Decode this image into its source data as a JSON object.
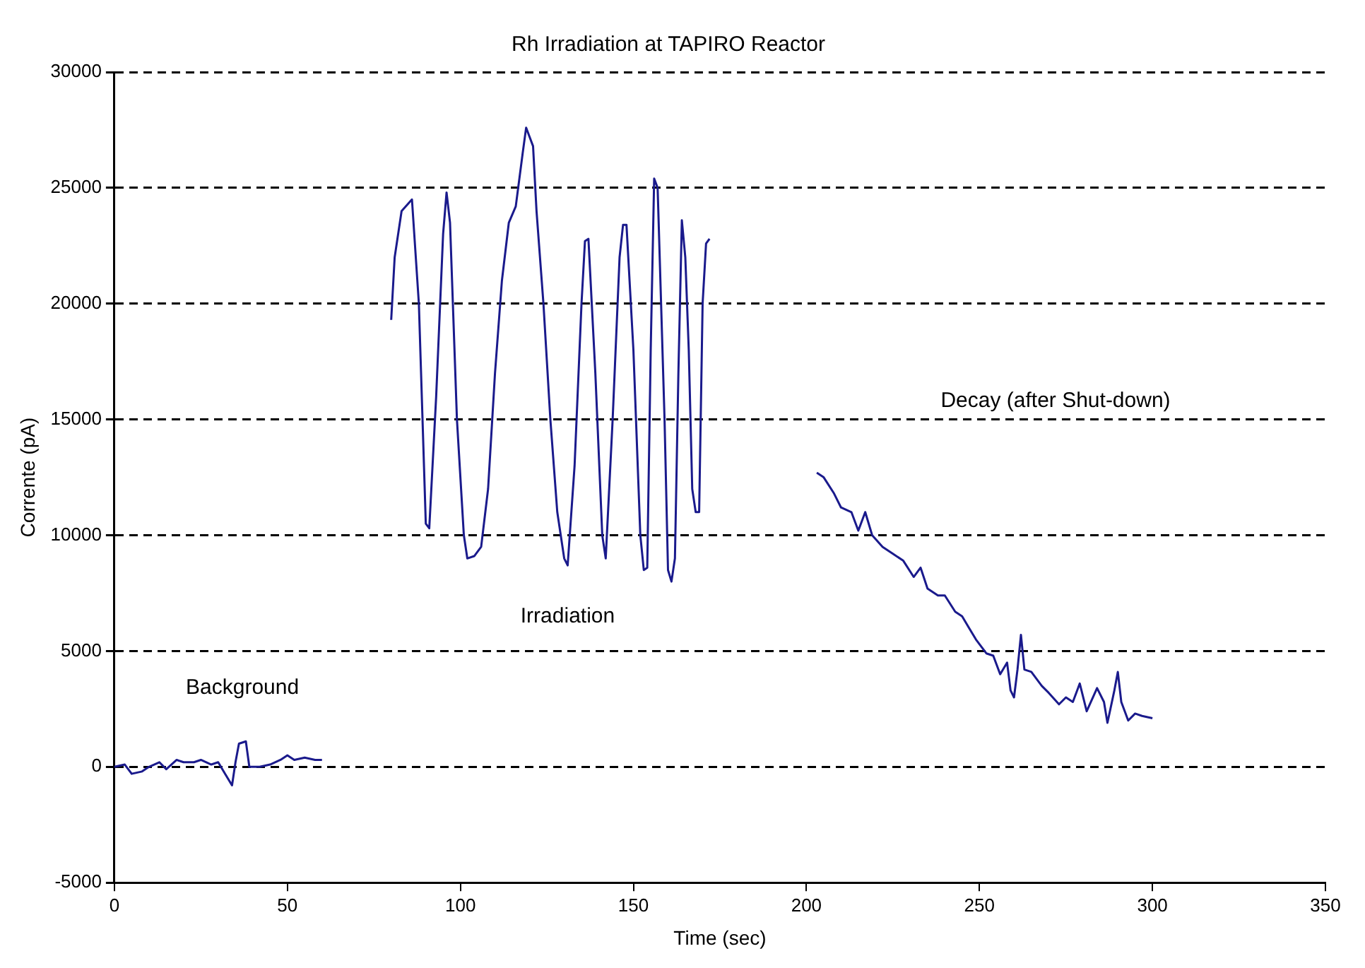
{
  "chart_data": {
    "type": "line",
    "title": "Rh Irradiation at TAPIRO Reactor",
    "xlabel": "Time (sec)",
    "ylabel": "Corrente (pA)",
    "xlim": [
      0,
      350
    ],
    "xticks": [
      0,
      50,
      100,
      150,
      200,
      250,
      300,
      350
    ],
    "ylim": [
      -5000,
      30000
    ],
    "yticks": [
      -5000,
      0,
      5000,
      10000,
      15000,
      20000,
      25000,
      30000
    ],
    "grid": "y",
    "legend": false,
    "marker": "none",
    "line_style": "solid",
    "series": [
      {
        "color": "#1a1a8c",
        "x": [
          0,
          3,
          5,
          8,
          10,
          13,
          15,
          18,
          20,
          23,
          25,
          28,
          30,
          32,
          34,
          35,
          36,
          38,
          39,
          42,
          45,
          48,
          50,
          52,
          55,
          58,
          60
        ],
        "values": [
          0,
          100,
          -300,
          -200,
          0,
          200,
          -100,
          300,
          200,
          200,
          300,
          100,
          200,
          -300,
          -800,
          200,
          1000,
          1100,
          0,
          0,
          100,
          300,
          500,
          300,
          400,
          300,
          300
        ]
      },
      {
        "color": "#1a1a8c",
        "x": [
          80,
          81,
          83,
          86,
          88,
          90,
          91,
          93,
          95,
          96,
          97,
          99,
          101,
          102,
          104,
          106,
          108,
          110,
          112,
          114,
          116,
          118,
          119,
          121,
          122,
          124,
          126,
          128,
          130,
          131,
          133,
          135,
          136,
          137,
          139,
          141,
          142,
          144,
          146,
          147,
          148,
          150,
          152,
          153,
          154,
          155,
          156,
          157,
          159,
          160,
          161,
          162,
          163,
          164,
          165,
          166,
          167,
          168,
          169,
          170,
          171,
          172
        ],
        "values": [
          19300,
          22000,
          24000,
          24500,
          20000,
          10500,
          10300,
          16000,
          23000,
          24800,
          23500,
          15000,
          10000,
          9000,
          9100,
          9500,
          12000,
          17000,
          21000,
          23500,
          24200,
          26500,
          27600,
          26800,
          24000,
          20000,
          15000,
          11000,
          9000,
          8700,
          13000,
          20000,
          22700,
          22800,
          17000,
          10000,
          9000,
          15000,
          22000,
          23400,
          23400,
          18000,
          10000,
          8500,
          8600,
          18000,
          25400,
          25000,
          15000,
          8500,
          8000,
          9000,
          17000,
          23600,
          22000,
          18000,
          12000,
          11000,
          11000,
          20000,
          22600,
          22800
        ]
      },
      {
        "color": "#1a1a8c",
        "x": [
          203,
          205,
          208,
          210,
          213,
          215,
          217,
          219,
          222,
          225,
          228,
          231,
          233,
          235,
          238,
          240,
          243,
          245,
          247,
          249,
          252,
          254,
          256,
          258,
          259,
          260,
          261,
          262,
          263,
          265,
          268,
          270,
          273,
          275,
          277,
          279,
          281,
          284,
          286,
          287,
          289,
          290,
          291,
          293,
          295,
          297,
          300
        ],
        "values": [
          12700,
          12500,
          11800,
          11200,
          11000,
          10200,
          11000,
          10000,
          9500,
          9200,
          8900,
          8200,
          8600,
          7700,
          7400,
          7400,
          6700,
          6500,
          6000,
          5500,
          4900,
          4800,
          4000,
          4500,
          3300,
          3000,
          4200,
          5700,
          4200,
          4100,
          3500,
          3200,
          2700,
          3000,
          2800,
          3600,
          2400,
          3400,
          2800,
          1900,
          3300,
          4100,
          2800,
          2000,
          2300,
          2200,
          2100
        ]
      }
    ],
    "annotations": [
      "Background",
      "Irradiation",
      "Decay (after Shut-down)"
    ]
  }
}
